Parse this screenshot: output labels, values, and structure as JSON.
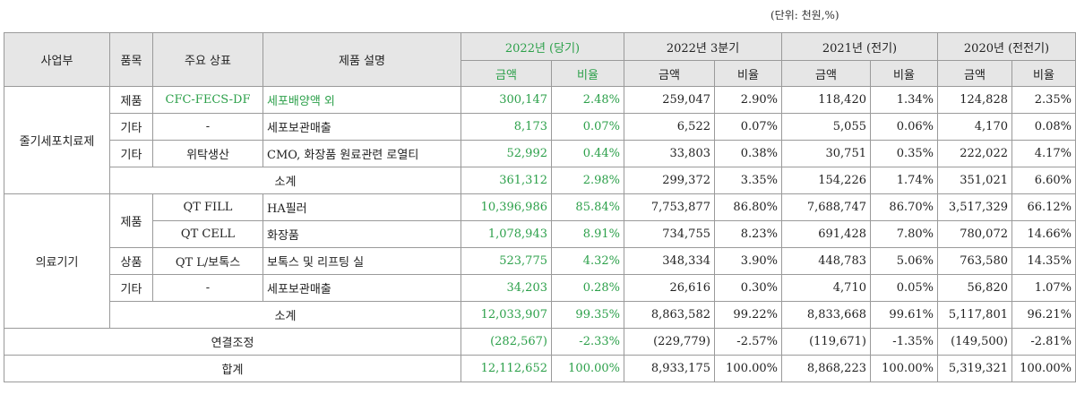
{
  "unit_note": "(단위: 천원,%)",
  "header": {
    "division": "사업부",
    "item": "품목",
    "brand": "주요 상표",
    "description": "제품 설명",
    "periods": [
      "2022년 (당기)",
      "2022년 3분기",
      "2021년 (전기)",
      "2020년 (전전기)"
    ],
    "amount": "금액",
    "ratio": "비율"
  },
  "divisions": [
    {
      "name": "줄기세포치료제"
    },
    {
      "name": "의료기기"
    }
  ],
  "rows": [
    {
      "item": "제품",
      "brand": "CFC-FECS-DF",
      "desc": "세포배양액 외",
      "values": [
        "300,147",
        "2.48%",
        "259,047",
        "2.90%",
        "118,420",
        "1.34%",
        "124,828",
        "2.35%"
      ]
    },
    {
      "item": "기타",
      "brand": "-",
      "desc": "세포보관매출",
      "values": [
        "8,173",
        "0.07%",
        "6,522",
        "0.07%",
        "5,055",
        "0.06%",
        "4,170",
        "0.08%"
      ]
    },
    {
      "item": "기타",
      "brand": "위탁생산",
      "desc": "CMO, 화장품 원료관련 로열티",
      "values": [
        "52,992",
        "0.44%",
        "33,803",
        "0.38%",
        "30,751",
        "0.35%",
        "222,022",
        "4.17%"
      ]
    },
    {
      "label": "소계",
      "values": [
        "361,312",
        "2.98%",
        "299,372",
        "3.35%",
        "154,226",
        "1.74%",
        "351,021",
        "6.60%"
      ]
    },
    {
      "item": "제품",
      "brand": "QT FILL",
      "desc": "HA필러",
      "values": [
        "10,396,986",
        "85.84%",
        "7,753,877",
        "86.80%",
        "7,688,747",
        "86.70%",
        "3,517,329",
        "66.12%"
      ]
    },
    {
      "brand": "QT CELL",
      "desc": "화장품",
      "values": [
        "1,078,943",
        "8.91%",
        "734,755",
        "8.23%",
        "691,428",
        "7.80%",
        "780,072",
        "14.66%"
      ]
    },
    {
      "item": "상품",
      "brand": "QT L/보톡스",
      "desc": "보톡스 및 리프팅 실",
      "values": [
        "523,775",
        "4.32%",
        "348,334",
        "3.90%",
        "448,783",
        "5.06%",
        "763,580",
        "14.35%"
      ]
    },
    {
      "item": "기타",
      "brand": "-",
      "desc": "세포보관매출",
      "values": [
        "34,203",
        "0.28%",
        "26,616",
        "0.30%",
        "4,710",
        "0.05%",
        "56,820",
        "1.07%"
      ]
    },
    {
      "label": "소계",
      "values": [
        "12,033,907",
        "99.35%",
        "8,863,582",
        "99.22%",
        "8,833,668",
        "99.61%",
        "5,117,801",
        "96.21%"
      ]
    },
    {
      "label": "연결조정",
      "values": [
        "(282,567)",
        "-2.33%",
        "(229,779)",
        "-2.57%",
        "(119,671)",
        "-1.35%",
        "(149,500)",
        "-2.81%"
      ]
    },
    {
      "label": "합계",
      "values": [
        "12,112,652",
        "100.00%",
        "8,933,175",
        "100.00%",
        "8,868,223",
        "100.00%",
        "5,319,321",
        "100.00%"
      ]
    }
  ]
}
